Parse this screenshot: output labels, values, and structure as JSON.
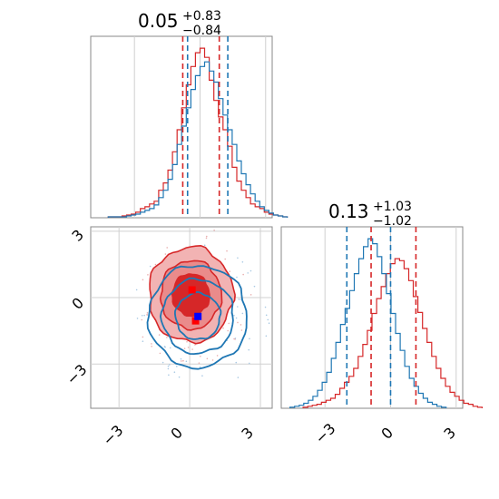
{
  "colors": {
    "red": "#d62728",
    "blue": "#1f77b4",
    "red_fill_outer": "#f2b3b3",
    "red_fill_mid": "#ea8b8b",
    "red_fill_inner": "#d62728",
    "grid": "#d0d0d0",
    "axes": "#888888"
  },
  "chart_data": [
    {
      "type": "histogram",
      "panel": "top-left",
      "title": {
        "value": "0.05",
        "plus": "+0.83",
        "minus": "−0.84"
      },
      "xlim": [
        -5,
        3.3
      ],
      "grid": true,
      "quantile_lines": {
        "red": [
          -0.79,
          0.88
        ],
        "blue": [
          -0.57,
          1.27
        ]
      },
      "series": [
        {
          "color": "red",
          "bins_start": -4.2,
          "bin_width": 0.21,
          "counts": [
            1,
            1,
            1,
            2,
            3,
            4,
            6,
            10,
            12,
            15,
            18,
            30,
            38,
            52,
            72,
            96,
            120,
            145,
            165,
            180,
            185,
            175,
            150,
            128,
            110,
            96,
            78,
            55,
            40,
            30,
            22,
            15,
            12,
            10,
            6,
            4,
            3,
            2,
            1
          ]
        },
        {
          "color": "blue",
          "bins_start": -4.2,
          "bin_width": 0.21,
          "counts": [
            1,
            1,
            1,
            1,
            2,
            3,
            4,
            6,
            8,
            10,
            14,
            22,
            30,
            42,
            58,
            80,
            100,
            120,
            140,
            155,
            165,
            170,
            160,
            148,
            130,
            112,
            96,
            80,
            62,
            48,
            36,
            26,
            18,
            12,
            8,
            5,
            3,
            2,
            1
          ]
        }
      ]
    },
    {
      "type": "contour",
      "panel": "bottom-left",
      "xlim": [
        -4.2,
        3.5
      ],
      "ylim": [
        -5,
        3.2
      ],
      "xticks": [
        "−3",
        "0",
        "3"
      ],
      "yticks": [
        "3",
        "0",
        "−3"
      ],
      "grid": true,
      "series": [
        {
          "color": "red",
          "filled": true,
          "center": [
            0.05,
            0.13
          ],
          "sigma": [
            0.83,
            1.0
          ]
        },
        {
          "color": "blue",
          "filled": false,
          "center": [
            0.35,
            -0.85
          ],
          "sigma": [
            0.95,
            1.05
          ]
        }
      ],
      "markers": [
        {
          "color": "red",
          "x": 0.1,
          "y": 0.35
        },
        {
          "color": "red",
          "x": 0.25,
          "y": -1.05
        },
        {
          "color": "blue",
          "x": 0.35,
          "y": -0.85
        }
      ]
    },
    {
      "type": "histogram",
      "panel": "bottom-right",
      "title": {
        "value": "0.13",
        "plus": "+1.03",
        "minus": "−1.02"
      },
      "xlim": [
        -5,
        3.3
      ],
      "xticks": [
        "−3",
        "0",
        "3"
      ],
      "grid": true,
      "quantile_lines": {
        "red": [
          -0.89,
          1.16
        ],
        "blue": [
          -2.0,
          0.0
        ]
      },
      "series": [
        {
          "color": "red",
          "bins_start": -4.0,
          "bin_width": 0.21,
          "counts": [
            1,
            2,
            3,
            4,
            6,
            8,
            10,
            14,
            20,
            26,
            32,
            40,
            52,
            64,
            78,
            95,
            110,
            122,
            135,
            145,
            150,
            148,
            140,
            128,
            112,
            96,
            80,
            66,
            52,
            40,
            30,
            22,
            16,
            12,
            8,
            5,
            4,
            2,
            1
          ]
        },
        {
          "color": "blue",
          "bins_start": -4.6,
          "bin_width": 0.21,
          "counts": [
            1,
            2,
            3,
            5,
            8,
            12,
            18,
            26,
            36,
            50,
            66,
            84,
            100,
            118,
            135,
            150,
            162,
            170,
            165,
            152,
            135,
            115,
            95,
            75,
            58,
            42,
            30,
            22,
            15,
            10,
            6,
            4,
            2,
            1
          ]
        }
      ]
    }
  ]
}
